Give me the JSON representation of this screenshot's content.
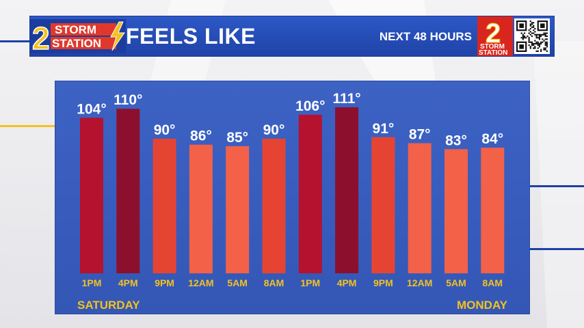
{
  "header": {
    "logo_left_line1": "STORM",
    "logo_left_line2": "STATION",
    "logo_left_number": "2",
    "title": "FEELS LIKE",
    "subtitle": "NEXT 48 HOURS",
    "logo_right_number": "2",
    "logo_right_line1": "STORM",
    "logo_right_line2": "STATION"
  },
  "days": {
    "start": "SATURDAY",
    "end": "MONDAY"
  },
  "colors": {
    "header_blue": "#2548b4",
    "panel_blue": "#3a5fc2",
    "label_yellow": "#f4c21f",
    "bar_dark": "#8c102e",
    "bar_red": "#b5122f",
    "bar_orange_red": "#e64433",
    "bar_orange": "#f36148"
  },
  "chart_data": {
    "type": "bar",
    "categories": [
      "1PM",
      "4PM",
      "9PM",
      "12AM",
      "5AM",
      "8AM",
      "1PM",
      "4PM",
      "9PM",
      "12AM",
      "5AM",
      "8AM"
    ],
    "values": [
      104,
      110,
      90,
      86,
      85,
      90,
      106,
      111,
      91,
      87,
      83,
      84
    ],
    "value_labels": [
      "104°",
      "110°",
      "90°",
      "86°",
      "85°",
      "90°",
      "106°",
      "111°",
      "91°",
      "87°",
      "83°",
      "84°"
    ],
    "unit": "°",
    "ylim": [
      0,
      111
    ],
    "grid": false
  }
}
